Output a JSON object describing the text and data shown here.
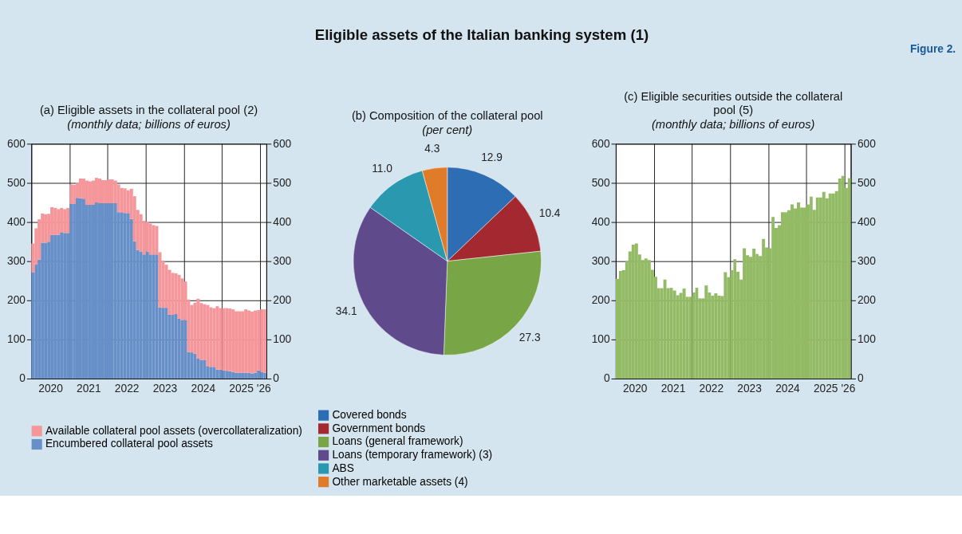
{
  "chart_data": [
    {
      "type": "other",
      "title": "Eligible assets of the Italian banking system (1)",
      "annotations": [
        "Figure 2."
      ]
    },
    {
      "type": "bar",
      "title": "(a) Eligible assets in the collateral pool (2)",
      "subtitle": "(monthly data; billions of euros)",
      "stacked": true,
      "legend": "bottom",
      "grid": true,
      "x": [
        "2020-01",
        "2020-02",
        "2020-03",
        "2020-04",
        "2020-05",
        "2020-06",
        "2020-07",
        "2020-08",
        "2020-09",
        "2020-10",
        "2020-11",
        "2020-12",
        "2021-01",
        "2021-02",
        "2021-03",
        "2021-04",
        "2021-05",
        "2021-06",
        "2021-07",
        "2021-08",
        "2021-09",
        "2021-10",
        "2021-11",
        "2021-12",
        "2022-01",
        "2022-02",
        "2022-03",
        "2022-04",
        "2022-05",
        "2022-06",
        "2022-07",
        "2022-08",
        "2022-09",
        "2022-10",
        "2022-11",
        "2022-12",
        "2023-01",
        "2023-02",
        "2023-03",
        "2023-04",
        "2023-05",
        "2023-06",
        "2023-07",
        "2023-08",
        "2023-09",
        "2023-10",
        "2023-11",
        "2023-12",
        "2024-01",
        "2024-02",
        "2024-03",
        "2024-04",
        "2024-05",
        "2024-06",
        "2024-07",
        "2024-08",
        "2024-09",
        "2024-10",
        "2024-11",
        "2024-12",
        "2025-01",
        "2025-02",
        "2025-03",
        "2025-04",
        "2025-05",
        "2025-06",
        "2025-07",
        "2025-08",
        "2025-09",
        "2025-10",
        "2025-11",
        "2025-12",
        "2026-01",
        "2026-02"
      ],
      "series": [
        {
          "name": "Encumbered collateral pool assets",
          "color": "#6890c8",
          "values": [
            271,
            291,
            304,
            347,
            347,
            350,
            367,
            367,
            367,
            374,
            372,
            372,
            446,
            446,
            462,
            461,
            460,
            444,
            444,
            444,
            450,
            448,
            448,
            448,
            448,
            448,
            448,
            425,
            425,
            423,
            423,
            408,
            351,
            329,
            325,
            317,
            325,
            317,
            317,
            317,
            182,
            181,
            181,
            163,
            163,
            165,
            153,
            150,
            150,
            68,
            67,
            64,
            51,
            48,
            48,
            32,
            30,
            30,
            23,
            23,
            21,
            20,
            19,
            17,
            15,
            15,
            15,
            15,
            15,
            13,
            15,
            21,
            17,
            15
          ]
        },
        {
          "name": "Available collateral pool assets (overcollateralization)",
          "color": "#f5979a",
          "values": [
            74,
            93,
            103,
            75,
            73,
            71,
            71,
            69,
            66,
            62,
            61,
            64,
            50,
            49,
            39,
            50,
            51,
            62,
            60,
            62,
            63,
            63,
            59,
            59,
            61,
            61,
            58,
            71,
            62,
            63,
            58,
            77,
            115,
            102,
            95,
            86,
            76,
            79,
            75,
            73,
            141,
            120,
            110,
            115,
            107,
            104,
            112,
            106,
            98,
            134,
            121,
            130,
            153,
            145,
            142,
            156,
            152,
            150,
            162,
            157,
            159,
            160,
            160,
            160,
            157,
            157,
            157,
            162,
            159,
            158,
            159,
            154,
            160,
            162
          ]
        }
      ],
      "xlim": [
        "2020-01",
        "2026-03"
      ],
      "xticks": [
        {
          "value": "2020-07",
          "label": "2020"
        },
        {
          "value": "2021-01",
          "label": null
        },
        {
          "value": "2021-07",
          "label": "2021"
        },
        {
          "value": "2022-01",
          "label": null
        },
        {
          "value": "2022-07",
          "label": "2022"
        },
        {
          "value": "2023-01",
          "label": null
        },
        {
          "value": "2023-07",
          "label": "2023"
        },
        {
          "value": "2024-01",
          "label": null
        },
        {
          "value": "2024-07",
          "label": "2024"
        },
        {
          "value": "2025-01",
          "label": null
        },
        {
          "value": "2025-07",
          "label": "2025"
        },
        {
          "value": "2026-01",
          "label": null
        },
        {
          "value": "2026-02",
          "label": "'26"
        }
      ],
      "ylim": [
        0,
        600
      ],
      "yticks": [
        0,
        100,
        200,
        300,
        400,
        500,
        600
      ],
      "y2lim": [
        0,
        600
      ],
      "y2ticks": [
        0,
        100,
        200,
        300,
        400,
        500,
        600
      ]
    },
    {
      "type": "pie",
      "title": "(b) Composition of the collateral pool",
      "subtitle": "(per cent)",
      "legend": "bottom",
      "categories": [
        "Covered bonds",
        "Government bonds",
        "Loans (general framework)",
        "Loans (temporary framework) (3)",
        "ABS",
        "Other marketable assets (4)"
      ],
      "values": [
        12.9,
        10.4,
        27.3,
        34.1,
        11.0,
        4.3
      ],
      "value_labels": [
        "12.9",
        "10.4",
        "27.3",
        "34.1",
        "11.0",
        "4.3"
      ],
      "colors": [
        "#2d6db3",
        "#a3282f",
        "#78a646",
        "#5f4b8b",
        "#2a99b0",
        "#e07b2a"
      ]
    },
    {
      "type": "bar",
      "title": "(c) Eligible securities outside the collateral pool (5)",
      "subtitle": "(monthly data; billions of euros)",
      "grid": true,
      "color": "#93bb65",
      "x": [
        "2020-01",
        "2020-02",
        "2020-03",
        "2020-04",
        "2020-05",
        "2020-06",
        "2020-07",
        "2020-08",
        "2020-09",
        "2020-10",
        "2020-11",
        "2020-12",
        "2021-01",
        "2021-02",
        "2021-03",
        "2021-04",
        "2021-05",
        "2021-06",
        "2021-07",
        "2021-08",
        "2021-09",
        "2021-10",
        "2021-11",
        "2021-12",
        "2022-01",
        "2022-02",
        "2022-03",
        "2022-04",
        "2022-05",
        "2022-06",
        "2022-07",
        "2022-08",
        "2022-09",
        "2022-10",
        "2022-11",
        "2022-12",
        "2023-01",
        "2023-02",
        "2023-03",
        "2023-04",
        "2023-05",
        "2023-06",
        "2023-07",
        "2023-08",
        "2023-09",
        "2023-10",
        "2023-11",
        "2023-12",
        "2024-01",
        "2024-02",
        "2024-03",
        "2024-04",
        "2024-05",
        "2024-06",
        "2024-07",
        "2024-08",
        "2024-09",
        "2024-10",
        "2024-11",
        "2024-12",
        "2025-01",
        "2025-02",
        "2025-03",
        "2025-04",
        "2025-05",
        "2025-06",
        "2025-07",
        "2025-08",
        "2025-09",
        "2025-10",
        "2025-11",
        "2025-12",
        "2026-01",
        "2026-02"
      ],
      "values": [
        255,
        275,
        277,
        300,
        325,
        342,
        345,
        317,
        303,
        307,
        303,
        278,
        260,
        231,
        231,
        253,
        231,
        232,
        225,
        213,
        219,
        230,
        209,
        209,
        220,
        232,
        205,
        205,
        238,
        220,
        212,
        218,
        212,
        211,
        272,
        259,
        277,
        305,
        273,
        253,
        333,
        315,
        311,
        332,
        318,
        313,
        357,
        335,
        333,
        413,
        385,
        392,
        425,
        425,
        430,
        445,
        435,
        450,
        437,
        437,
        445,
        465,
        431,
        463,
        463,
        477,
        461,
        473,
        473,
        479,
        511,
        518,
        487,
        512
      ],
      "xlim": [
        "2020-01",
        "2026-03"
      ],
      "xticks": [
        {
          "value": "2020-07",
          "label": "2020"
        },
        {
          "value": "2021-01",
          "label": null
        },
        {
          "value": "2021-07",
          "label": "2021"
        },
        {
          "value": "2022-01",
          "label": null
        },
        {
          "value": "2022-07",
          "label": "2022"
        },
        {
          "value": "2023-01",
          "label": null
        },
        {
          "value": "2023-07",
          "label": "2023"
        },
        {
          "value": "2024-01",
          "label": null
        },
        {
          "value": "2024-07",
          "label": "2024"
        },
        {
          "value": "2025-01",
          "label": null
        },
        {
          "value": "2025-07",
          "label": "2025"
        },
        {
          "value": "2026-01",
          "label": null
        },
        {
          "value": "2026-02",
          "label": "'26"
        }
      ],
      "ylim": [
        0,
        600
      ],
      "yticks": [
        0,
        100,
        200,
        300,
        400,
        500,
        600
      ],
      "y2lim": [
        0,
        600
      ],
      "y2ticks": [
        0,
        100,
        200,
        300,
        400,
        500,
        600
      ]
    }
  ]
}
